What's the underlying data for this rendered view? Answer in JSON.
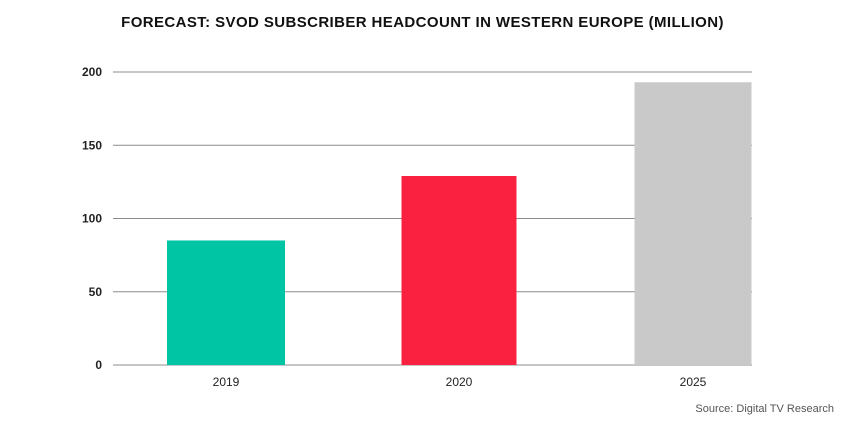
{
  "chart_data": {
    "type": "bar",
    "title": "FORECAST: SVOD SUBSCRIBER HEADCOUNT IN WESTERN EUROPE (MILLION)",
    "categories": [
      "2019",
      "2020",
      "2025"
    ],
    "values": [
      85,
      129,
      193
    ],
    "colors": [
      "#00c5a5",
      "#f92040",
      "#c9c9c9"
    ],
    "ylim": [
      0,
      200
    ],
    "yticks": [
      0,
      50,
      100,
      150,
      200
    ],
    "grid": true,
    "gridline_color": "#8c8c8c",
    "xlabel": "",
    "ylabel": ""
  },
  "source": "Source: Digital TV Research"
}
